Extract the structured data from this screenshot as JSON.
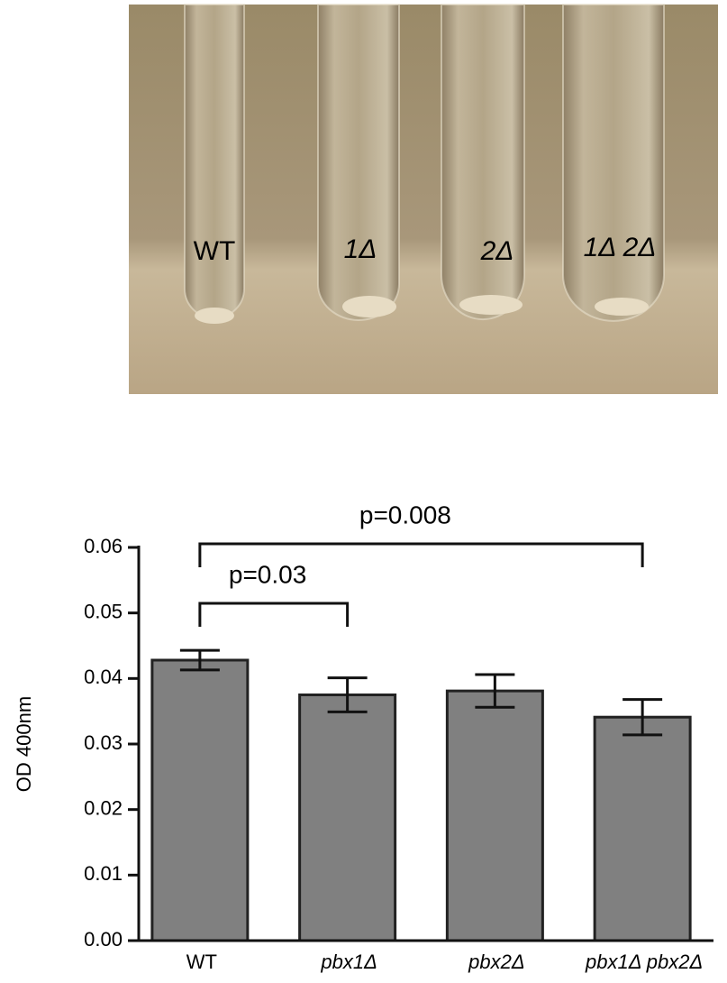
{
  "photo": {
    "labels": [
      "WT",
      "1Δ",
      "2Δ",
      "1Δ 2Δ"
    ]
  },
  "chart_data": {
    "type": "bar",
    "y_label": "OD 400nm",
    "categories": [
      "WT",
      "pbx1Δ",
      "pbx2Δ",
      "pbx1Δ pbx2Δ"
    ],
    "values": [
      0.0428,
      0.0375,
      0.0381,
      0.0341
    ],
    "errors": [
      0.0015,
      0.0026,
      0.0025,
      0.0027
    ],
    "color": "#808080",
    "ylim": [
      0,
      0.06
    ],
    "yticks": [
      {
        "value": 0,
        "label": "0.00"
      },
      0.01,
      0.02,
      0.03,
      0.04,
      0.05,
      0.06
    ],
    "comparisons": [
      {
        "from": 0,
        "to": 1,
        "label": "p=0.03"
      },
      {
        "from": 0,
        "to": 3,
        "label": "p=0.008"
      }
    ]
  }
}
